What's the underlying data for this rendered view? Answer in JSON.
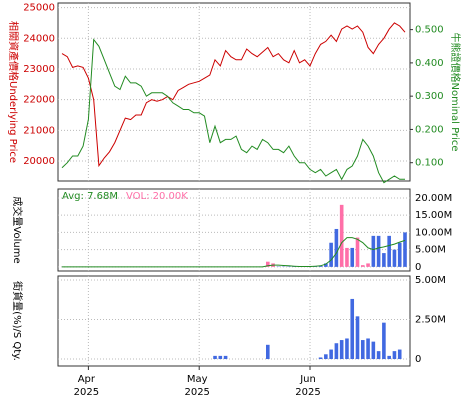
{
  "chart_data": [
    {
      "type": "line",
      "ylabel": "相關資產價格Underlying Price",
      "y2label": "牛熊證價格Nominal Price",
      "ylim": [
        19350,
        25150
      ],
      "yticks": [
        20000,
        21000,
        22000,
        23000,
        24000,
        25000
      ],
      "y2lim": [
        0.045,
        0.58
      ],
      "y2ticks": [
        {
          "value": 0.1,
          "label": "0.100"
        },
        {
          "value": 0.2,
          "label": "0.200"
        },
        {
          "value": 0.3,
          "label": "0.300"
        },
        {
          "value": 0.4,
          "label": "0.400"
        },
        {
          "value": 0.5,
          "label": "0.500"
        }
      ],
      "grid": true,
      "series": [
        {
          "color": "#cc0000",
          "values": [
            23500,
            23400,
            23050,
            23100,
            23050,
            22700,
            22000,
            19850,
            20100,
            20300,
            20600,
            21000,
            21400,
            21350,
            21500,
            21500,
            21900,
            22000,
            21950,
            22000,
            22100,
            22000,
            22300,
            22400,
            22500,
            22550,
            22600,
            22700,
            22800,
            23300,
            23100,
            23600,
            23400,
            23300,
            23300,
            23650,
            23500,
            23400,
            23550,
            23700,
            23400,
            23500,
            23300,
            23200,
            23600,
            23200,
            23300,
            23100,
            23500,
            23800,
            23900,
            24100,
            23900,
            24300,
            24400,
            24300,
            24400,
            24200,
            23700,
            23500,
            23800,
            24000,
            24300,
            24500,
            24400,
            24200
          ]
        },
        {
          "color": "#228b22",
          "axis": "y2",
          "values": [
            0.085,
            0.1,
            0.12,
            0.12,
            0.15,
            0.23,
            0.47,
            0.45,
            0.41,
            0.37,
            0.33,
            0.32,
            0.36,
            0.34,
            0.34,
            0.33,
            0.3,
            0.31,
            0.31,
            0.31,
            0.3,
            0.28,
            0.27,
            0.26,
            0.26,
            0.25,
            0.25,
            0.24,
            0.16,
            0.21,
            0.16,
            0.17,
            0.17,
            0.18,
            0.14,
            0.13,
            0.15,
            0.14,
            0.17,
            0.16,
            0.14,
            0.14,
            0.13,
            0.15,
            0.12,
            0.1,
            0.1,
            0.08,
            0.07,
            0.08,
            0.06,
            0.07,
            0.08,
            0.05,
            0.08,
            0.09,
            0.12,
            0.17,
            0.15,
            0.12,
            0.07,
            0.04,
            0.05,
            0.06,
            0.05,
            0.05
          ]
        }
      ]
    },
    {
      "type": "bar",
      "ylabel": "成交量Volume",
      "avg_label": "Avg: 7.68M",
      "vol_label": "VOL: 20.00K",
      "ylim": [
        -1.2,
        22.6
      ],
      "yticks": [
        0,
        {
          "value": 5,
          "label": "5.00M"
        },
        {
          "value": 10,
          "label": "10.00M"
        },
        {
          "value": 15,
          "label": "15.00M"
        },
        {
          "value": 20,
          "label": "20.00M"
        }
      ],
      "grid": true,
      "values": [
        0,
        0,
        0,
        0,
        0,
        0,
        0,
        0,
        0,
        0,
        0,
        0,
        0,
        0,
        0,
        0,
        0,
        0,
        0,
        0,
        0,
        0,
        0,
        0,
        0,
        0,
        0,
        0,
        0,
        0,
        0,
        0,
        0,
        0,
        0,
        0,
        0,
        0,
        0,
        1.5,
        1.0,
        0.1,
        0.1,
        0.1,
        0.1,
        0.1,
        0.1,
        0.1,
        0.1,
        0.3,
        1.0,
        7,
        11,
        18,
        5.5,
        5.5,
        8.5,
        0.5,
        1,
        9,
        9,
        4,
        9,
        5,
        7,
        10
      ],
      "colors": [
        "#4169e1",
        "#4169e1",
        "#4169e1",
        "#4169e1",
        "#4169e1",
        "#4169e1",
        "#4169e1",
        "#4169e1",
        "#4169e1",
        "#4169e1",
        "#4169e1",
        "#4169e1",
        "#4169e1",
        "#4169e1",
        "#4169e1",
        "#4169e1",
        "#4169e1",
        "#4169e1",
        "#4169e1",
        "#4169e1",
        "#4169e1",
        "#4169e1",
        "#4169e1",
        "#4169e1",
        "#4169e1",
        "#4169e1",
        "#4169e1",
        "#4169e1",
        "#4169e1",
        "#4169e1",
        "#4169e1",
        "#4169e1",
        "#4169e1",
        "#4169e1",
        "#4169e1",
        "#4169e1",
        "#4169e1",
        "#4169e1",
        "#4169e1",
        "#ff6fa8",
        "#ff6fa8",
        "#4169e1",
        "#4169e1",
        "#4169e1",
        "#4169e1",
        "#4169e1",
        "#4169e1",
        "#4169e1",
        "#4169e1",
        "#4169e1",
        "#4169e1",
        "#4169e1",
        "#4169e1",
        "#ff6fa8",
        "#ff6fa8",
        "#4169e1",
        "#ff6fa8",
        "#ff6fa8",
        "#ff6fa8",
        "#4169e1",
        "#4169e1",
        "#4169e1",
        "#4169e1",
        "#4169e1",
        "#4169e1",
        "#4169e1"
      ],
      "avg_color": "#228b22",
      "avg": [
        0,
        0,
        0,
        0,
        0,
        0,
        0,
        0,
        0,
        0,
        0,
        0,
        0,
        0,
        0,
        0,
        0,
        0,
        0,
        0,
        0,
        0,
        0,
        0,
        0,
        0,
        0,
        0,
        0,
        0,
        0,
        0,
        0,
        0,
        0,
        0,
        0,
        0,
        0,
        0.3,
        0.5,
        0.5,
        0.4,
        0.3,
        0.2,
        0.1,
        0.1,
        0.1,
        0.2,
        0.3,
        0.8,
        2,
        4,
        7,
        8.5,
        8.5,
        8,
        7,
        5.5,
        5,
        5.5,
        5.8,
        6.2,
        6.6,
        7.2,
        7.68
      ]
    },
    {
      "type": "bar",
      "ylabel": "街貨量(%)/S Qty.",
      "color": "#4169e1",
      "ylim": [
        -0.44,
        5.25
      ],
      "yticks": [
        0,
        {
          "value": 2.5,
          "label": "2.50M"
        },
        {
          "value": 5,
          "label": "5.00M"
        }
      ],
      "grid": true,
      "values": [
        0,
        0,
        0,
        0,
        0,
        0,
        0,
        0,
        0,
        0,
        0,
        0,
        0,
        0,
        0,
        0,
        0,
        0,
        0,
        0,
        0,
        0,
        0,
        0,
        0,
        0,
        0,
        0,
        0,
        0.2,
        0.2,
        0.2,
        0,
        0,
        0,
        0,
        0,
        0,
        0,
        0.9,
        0,
        0,
        0,
        0,
        0,
        0,
        0,
        0,
        0,
        0.1,
        0.3,
        0.6,
        1.0,
        1.2,
        1.3,
        3.8,
        2.7,
        1.2,
        1.3,
        1.1,
        0.5,
        2.3,
        0.2,
        0.5,
        0.6,
        0
      ],
      "xticks": [
        {
          "value": 5,
          "label": [
            "Apr",
            "2025"
          ]
        },
        {
          "value": 26,
          "label": [
            "May",
            "2025"
          ]
        },
        {
          "value": 47,
          "label": [
            "Jun",
            "2025"
          ]
        }
      ]
    }
  ]
}
